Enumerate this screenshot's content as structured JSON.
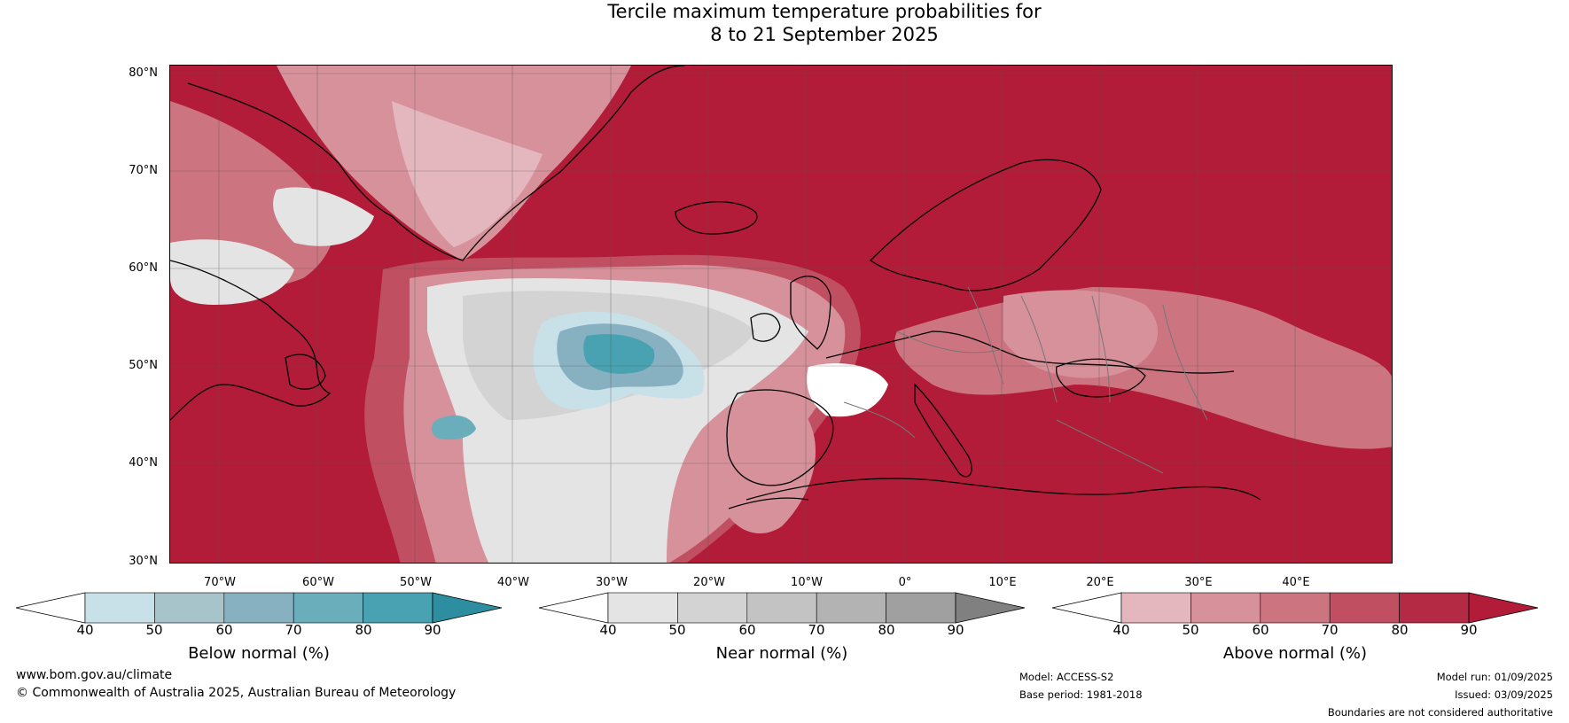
{
  "title": {
    "line1": "Tercile maximum temperature probabilities for",
    "line2": "8 to 21 September 2025"
  },
  "map": {
    "lat_labels": [
      "80°N",
      "70°N",
      "60°N",
      "50°N",
      "40°N",
      "30°N"
    ],
    "lon_labels": [
      "70°W",
      "60°W",
      "50°W",
      "40°W",
      "30°W",
      "20°W",
      "10°W",
      "0°",
      "10°E",
      "20°E",
      "30°E",
      "40°E"
    ],
    "extent": {
      "lon": [
        -76,
        49
      ],
      "lat": [
        30,
        81
      ]
    }
  },
  "colorbars": {
    "below": {
      "title": "Below normal (%)",
      "ticks": [
        "40",
        "50",
        "60",
        "70",
        "80",
        "90"
      ],
      "colors": [
        "#ffffff",
        "#c8e1e8",
        "#a6c4ca",
        "#87b1c1",
        "#6aaebb",
        "#48a2b1",
        "#2c8ea0"
      ]
    },
    "near": {
      "title": "Near normal (%)",
      "ticks": [
        "40",
        "50",
        "60",
        "70",
        "80",
        "90"
      ],
      "colors": [
        "#ffffff",
        "#e4e4e4",
        "#d3d3d3",
        "#c3c3c3",
        "#b3b3b3",
        "#a0a0a0",
        "#808080"
      ]
    },
    "above": {
      "title": "Above normal (%)",
      "ticks": [
        "40",
        "50",
        "60",
        "70",
        "80",
        "90"
      ],
      "colors": [
        "#ffffff",
        "#e4b7be",
        "#d7919b",
        "#cc7480",
        "#c04f62",
        "#b42a44",
        "#b21c38"
      ]
    }
  },
  "footer": {
    "website": "www.bom.gov.au/climate",
    "copyright": "© Commonwealth of Australia 2025, Australian Bureau of Meteorology",
    "model": "Model: ACCESS-S2",
    "base_period": "Base period: 1981-2018",
    "model_run": "Model run: 01/09/2025",
    "issued": "Issued: 03/09/2025",
    "disclaimer": "Boundaries are not considered authoritative"
  }
}
